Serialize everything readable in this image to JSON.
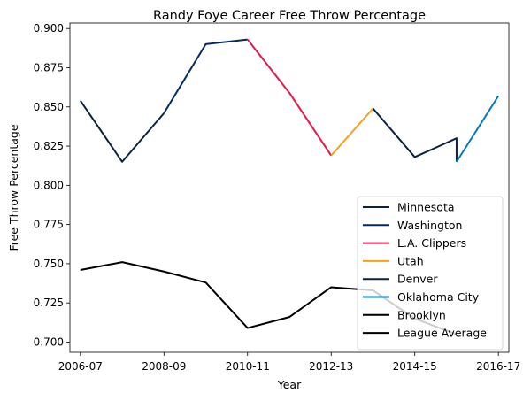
{
  "chart_data": {
    "type": "line",
    "title": "Randy Foye Career Free Throw Percentage",
    "xlabel": "Year",
    "ylabel": "Free Throw Percentage",
    "x_tick_labels": [
      "2006-07",
      "2008-09",
      "2010-11",
      "2012-13",
      "2014-15",
      "2016-17"
    ],
    "y_ticks": [
      0.7,
      0.725,
      0.75,
      0.775,
      0.8,
      0.825,
      0.85,
      0.875,
      0.9
    ],
    "y_tick_labels": [
      "0.700",
      "0.725",
      "0.750",
      "0.775",
      "0.800",
      "0.825",
      "0.850",
      "0.875",
      "0.900"
    ],
    "xlim": [
      -0.25,
      10.25
    ],
    "ylim": [
      0.6935,
      0.9035
    ],
    "grid": false,
    "legend_position": "lower-right",
    "series": [
      {
        "name": "Minnesota",
        "color": "#0c2340",
        "points": [
          [
            0,
            0.854
          ],
          [
            1,
            0.815
          ],
          [
            2,
            0.846
          ]
        ]
      },
      {
        "name": "Washington",
        "color": "#002b5c",
        "points": [
          [
            2,
            0.846
          ],
          [
            3,
            0.89
          ],
          [
            4,
            0.893
          ]
        ]
      },
      {
        "name": "L.A. Clippers",
        "color": "#e4184c",
        "points": [
          [
            4,
            0.893
          ],
          [
            5,
            0.859
          ],
          [
            6,
            0.819
          ]
        ]
      },
      {
        "name": "Utah",
        "color": "#f4a21e",
        "points": [
          [
            6,
            0.819
          ],
          [
            7,
            0.849
          ]
        ]
      },
      {
        "name": "Denver",
        "color": "#0e2240",
        "points": [
          [
            7,
            0.849
          ],
          [
            8,
            0.818
          ],
          [
            9,
            0.83
          ],
          [
            9,
            0.815
          ]
        ]
      },
      {
        "name": "Oklahoma City",
        "color": "#007ac1",
        "points": [
          [
            9,
            0.815
          ],
          [
            10,
            0.857
          ]
        ]
      },
      {
        "name": "Brooklyn",
        "color": "#000000",
        "points": []
      },
      {
        "name": "League Average",
        "color": "#000000",
        "points": [
          [
            0,
            0.746
          ],
          [
            1,
            0.751
          ],
          [
            2,
            0.745
          ],
          [
            3,
            0.738
          ],
          [
            4,
            0.709
          ],
          [
            5,
            0.716
          ],
          [
            6,
            0.735
          ],
          [
            7,
            0.733
          ],
          [
            8,
            0.715
          ],
          [
            9,
            0.705
          ]
        ]
      }
    ]
  }
}
